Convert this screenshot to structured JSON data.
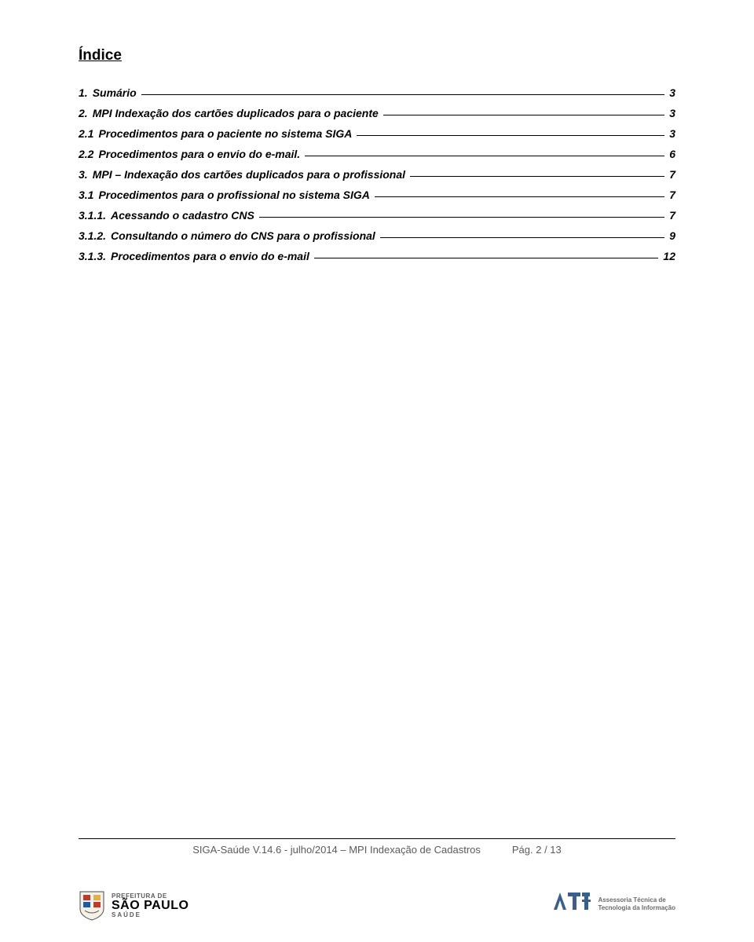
{
  "title": "Índice",
  "toc": [
    {
      "num": "1.",
      "label": "Sumário",
      "page": "3",
      "indent": 0,
      "style": "bold"
    },
    {
      "num": "2.",
      "label": "MPI Indexação dos cartões duplicados para o paciente",
      "page": "3",
      "indent": 0,
      "style": "bold"
    },
    {
      "num": "2.1",
      "label": "Procedimentos para o paciente no sistema SIGA",
      "page": "3",
      "indent": 1,
      "style": "bold"
    },
    {
      "num": "2.2",
      "label": "Procedimentos para o envio do e-mail.",
      "page": "6",
      "indent": 1,
      "style": "bold"
    },
    {
      "num": "3.",
      "label": "MPI – Indexação dos cartões duplicados para o profissional",
      "page": "7",
      "indent": 0,
      "style": "bold"
    },
    {
      "num": "3.1",
      "label": "Procedimentos para o profissional no sistema SIGA",
      "page": "7",
      "indent": 1,
      "style": "bold"
    },
    {
      "num": "3.1.1.",
      "label": "Acessando o cadastro CNS",
      "page": "7",
      "indent": 2,
      "style": "italic"
    },
    {
      "num": "3.1.2.",
      "label": "Consultando o número do CNS para o profissional",
      "page": "9",
      "indent": 2,
      "style": "italic"
    },
    {
      "num": "3.1.3.",
      "label": "Procedimentos para o envio do e-mail",
      "page": "12",
      "indent": 2,
      "style": "italic"
    }
  ],
  "footer": {
    "left": "SIGA-Saúde  V.14.6 - julho/2014 – MPI Indexação de Cadastros",
    "right": "Pág. 2 / 13"
  },
  "logo_left": {
    "line1": "PREFEITURA DE",
    "line2": "SÃO PAULO",
    "line3": "SAÚDE",
    "shield_colors": {
      "red": "#c0392b",
      "yellow": "#e8b03a",
      "blue": "#245a9a",
      "gray": "#4a4a4a"
    }
  },
  "logo_right": {
    "line1": "Assessoria Técnica de",
    "line2": "Tecnologia da Informação",
    "color": "#3a5f8a"
  },
  "colors": {
    "text": "#000000",
    "muted": "#5a5a5a",
    "line": "#000000",
    "bg": "#ffffff"
  }
}
